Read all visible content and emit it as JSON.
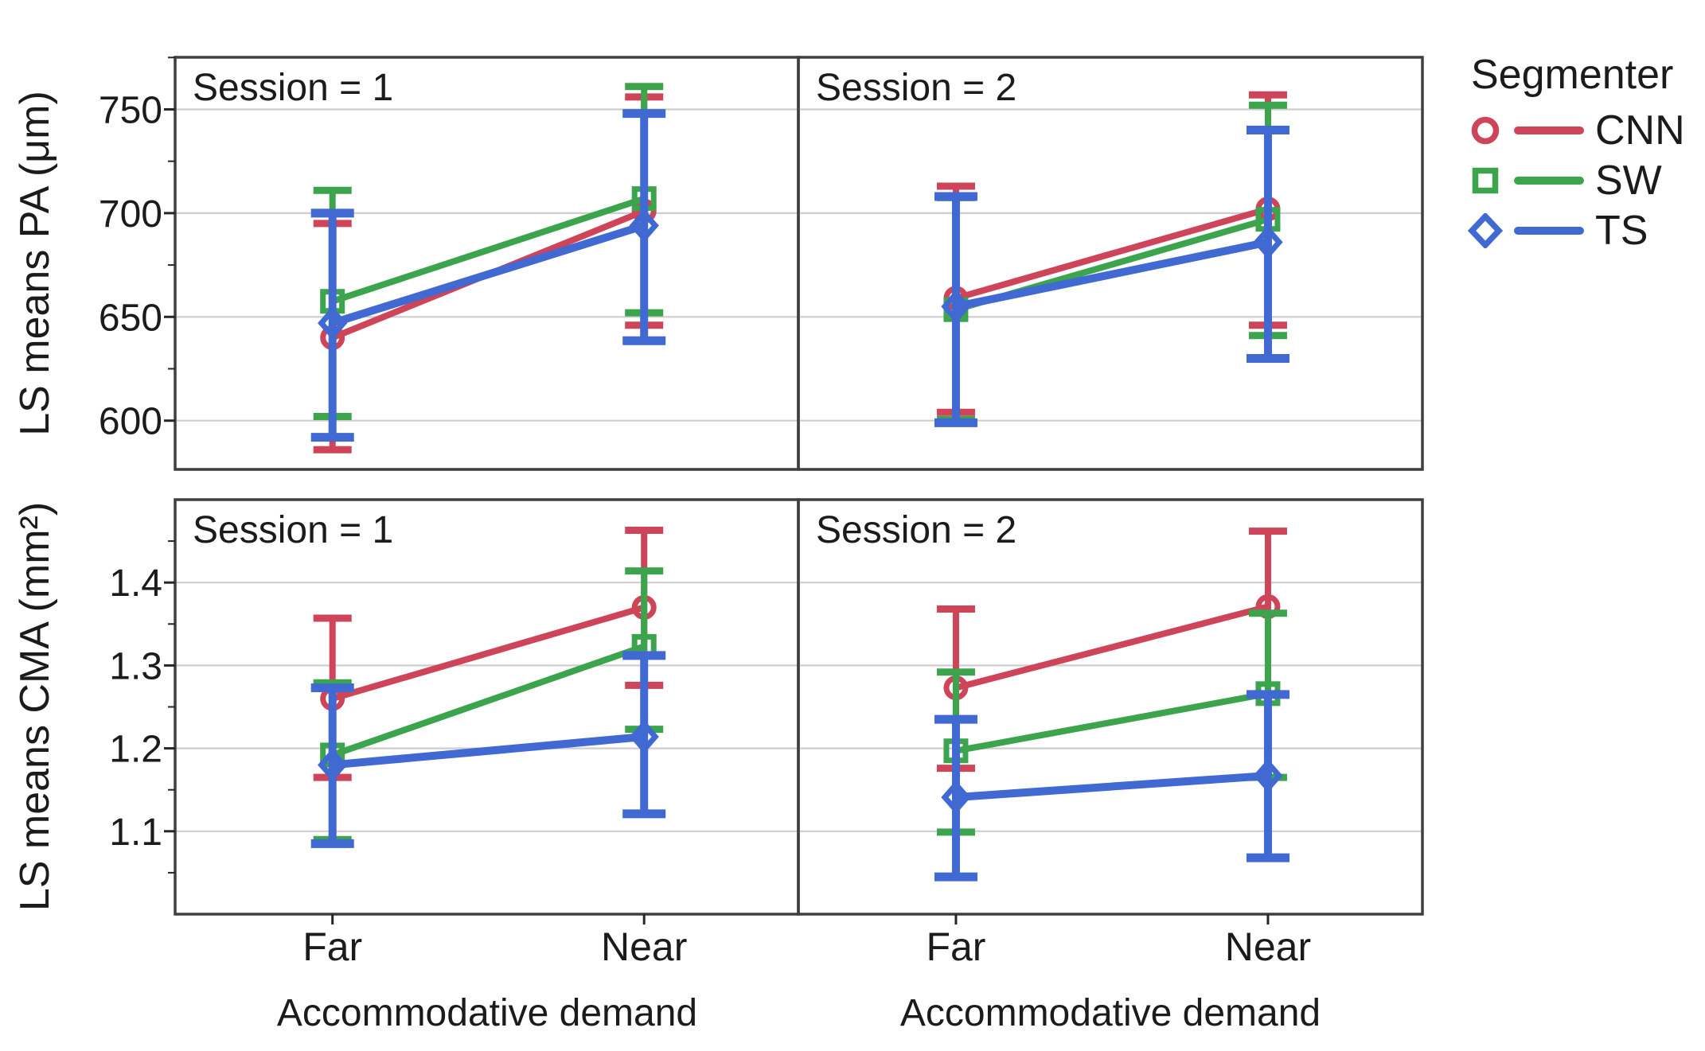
{
  "figure": {
    "background": "#ffffff",
    "text_color": "#1b1b1b",
    "border_color": "#3f3f3f",
    "gridline_color": "#cecece",
    "tick_color": "#262626",
    "x_axis_title": "Accommodative demand",
    "row_y_labels": [
      "LS means PA (μm)",
      "LS means CMA (mm²)"
    ],
    "col_titles": [
      "Session = 1",
      "Session = 2"
    ],
    "legend": {
      "title": "Segmenter",
      "entries": [
        {
          "label": "CNN",
          "marker": "circle",
          "color": "#ce4458"
        },
        {
          "label": "SW",
          "marker": "square",
          "color": "#3ba44c"
        },
        {
          "label": "TS",
          "marker": "diamond",
          "color": "#4169d2"
        }
      ]
    }
  },
  "chart_data": [
    {
      "type": "line",
      "panel": "pa_session1",
      "row": 0,
      "col": 0,
      "title": "Session = 1",
      "ylabel": "LS means PA (μm)",
      "xlabel": "Accommodative demand",
      "categories": [
        "Far",
        "Near"
      ],
      "ylim": [
        576.5,
        775.1
      ],
      "yticks": [
        600,
        650,
        700,
        750
      ],
      "yticks_minor": [
        575,
        625,
        675,
        725,
        775
      ],
      "grid": true,
      "legend_position": "right",
      "series": [
        {
          "name": "CNN",
          "values": [
            640,
            701
          ],
          "err_low": [
            586,
            646
          ],
          "err_high": [
            695,
            756
          ]
        },
        {
          "name": "SW",
          "values": [
            657.5,
            707
          ],
          "err_low": [
            602,
            652
          ],
          "err_high": [
            711,
            761
          ]
        },
        {
          "name": "TS",
          "values": [
            647,
            694
          ],
          "err_low": [
            592,
            638.5
          ],
          "err_high": [
            700,
            748
          ]
        }
      ]
    },
    {
      "type": "line",
      "panel": "pa_session2",
      "row": 0,
      "col": 1,
      "title": "Session = 2",
      "ylabel": "LS means PA (μm)",
      "xlabel": "Accommodative demand",
      "categories": [
        "Far",
        "Near"
      ],
      "ylim": [
        576.5,
        775.1
      ],
      "yticks": [
        600,
        650,
        700,
        750
      ],
      "yticks_minor": [
        575,
        625,
        675,
        725,
        775
      ],
      "grid": true,
      "series": [
        {
          "name": "CNN",
          "values": [
            659,
            702
          ],
          "err_low": [
            604,
            646
          ],
          "err_high": [
            713,
            757
          ]
        },
        {
          "name": "SW",
          "values": [
            653.5,
            697
          ],
          "err_low": [
            600.5,
            641
          ],
          "err_high": [
            707.5,
            752
          ]
        },
        {
          "name": "TS",
          "values": [
            655,
            686
          ],
          "err_low": [
            599,
            630
          ],
          "err_high": [
            708,
            740
          ]
        }
      ]
    },
    {
      "type": "line",
      "panel": "cma_session1",
      "row": 1,
      "col": 0,
      "title": "Session = 1",
      "ylabel": "LS means CMA (mm²)",
      "xlabel": "Accommodative demand",
      "categories": [
        "Far",
        "Near"
      ],
      "ylim": [
        1.0,
        1.5
      ],
      "yticks": [
        1.1,
        1.2,
        1.3,
        1.4
      ],
      "yticks_minor": [
        1.05,
        1.15,
        1.25,
        1.35,
        1.45
      ],
      "grid": true,
      "series": [
        {
          "name": "CNN",
          "values": [
            1.26,
            1.37
          ],
          "err_low": [
            1.165,
            1.276
          ],
          "err_high": [
            1.357,
            1.463
          ]
        },
        {
          "name": "SW",
          "values": [
            1.192,
            1.323
          ],
          "err_low": [
            1.09,
            1.223
          ],
          "err_high": [
            1.279,
            1.414
          ]
        },
        {
          "name": "TS",
          "values": [
            1.18,
            1.214
          ],
          "err_low": [
            1.085,
            1.121
          ],
          "err_high": [
            1.273,
            1.312
          ]
        }
      ]
    },
    {
      "type": "line",
      "panel": "cma_session2",
      "row": 1,
      "col": 1,
      "title": "Session = 2",
      "ylabel": "LS means CMA (mm²)",
      "xlabel": "Accommodative demand",
      "categories": [
        "Far",
        "Near"
      ],
      "ylim": [
        1.0,
        1.5
      ],
      "yticks": [
        1.1,
        1.2,
        1.3,
        1.4
      ],
      "yticks_minor": [
        1.05,
        1.15,
        1.25,
        1.35,
        1.45
      ],
      "grid": true,
      "series": [
        {
          "name": "CNN",
          "values": [
            1.273,
            1.371
          ],
          "err_low": [
            1.176,
            1.265
          ],
          "err_high": [
            1.368,
            1.462
          ]
        },
        {
          "name": "SW",
          "values": [
            1.197,
            1.266
          ],
          "err_low": [
            1.099,
            1.165
          ],
          "err_high": [
            1.292,
            1.363
          ]
        },
        {
          "name": "TS",
          "values": [
            1.141,
            1.167
          ],
          "err_low": [
            1.045,
            1.068
          ],
          "err_high": [
            1.235,
            1.265
          ]
        }
      ]
    }
  ]
}
